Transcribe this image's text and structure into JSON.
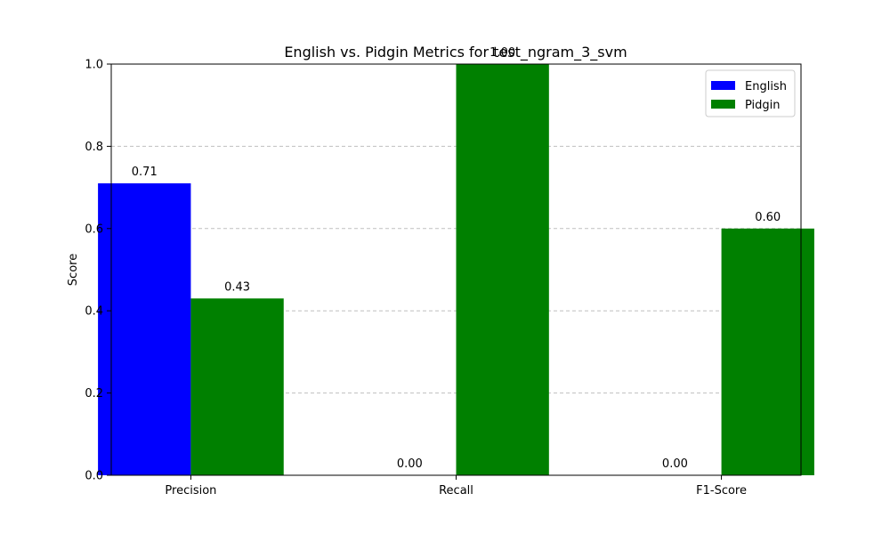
{
  "chart_data": {
    "type": "bar",
    "title": "English vs. Pidgin Metrics for test_ngram_3_svm",
    "xlabel": "",
    "ylabel": "Score",
    "categories": [
      "Precision",
      "Recall",
      "F1-Score"
    ],
    "series": [
      {
        "name": "English",
        "values": [
          0.71,
          0.0,
          0.0
        ],
        "labels": [
          "0.71",
          "0.00",
          "0.00"
        ],
        "color": "#0000ff"
      },
      {
        "name": "Pidgin",
        "values": [
          0.43,
          1.0,
          0.6
        ],
        "labels": [
          "0.43",
          "1.00",
          "0.60"
        ],
        "color": "#008000"
      }
    ],
    "ylim": [
      0,
      1.0
    ],
    "yticks": [
      "0.0",
      "0.2",
      "0.4",
      "0.6",
      "0.8",
      "1.0"
    ],
    "grid": "y-dashed",
    "legend_position": "top-right"
  }
}
